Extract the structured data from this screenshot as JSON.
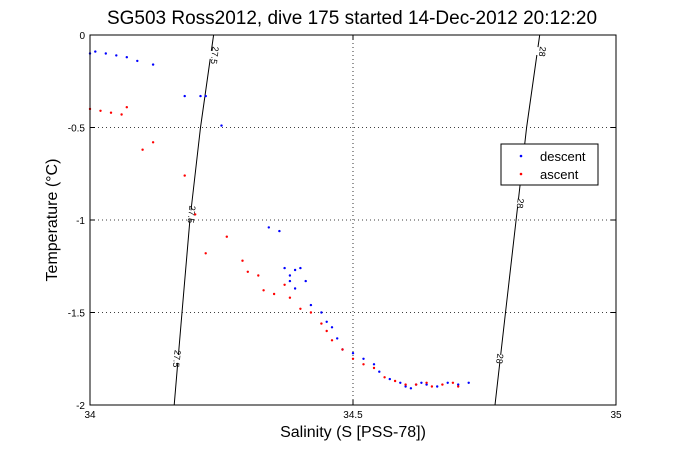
{
  "chart_data": {
    "type": "scatter",
    "title": "SG503 Ross2012, dive 175 started 14-Dec-2012 20:12:20",
    "xlabel": "Salinity (S [PSS-78])",
    "ylabel": "Temperature (°C)",
    "xlim": [
      34,
      35
    ],
    "ylim": [
      -2,
      0
    ],
    "xticks": [
      34,
      34.5,
      35
    ],
    "xtick_labels": [
      "34",
      "34.5",
      "35"
    ],
    "yticks": [
      0,
      -0.5,
      -1,
      -1.5,
      -2
    ],
    "ytick_labels": [
      "0",
      "-0.5",
      "-1",
      "-1.5",
      "-2"
    ],
    "grid": true,
    "grid_style": "dotted",
    "legend_position": "right",
    "isopycnals": [
      {
        "label": "27.5",
        "points": [
          [
            34.16,
            -2.0
          ],
          [
            34.175,
            -1.5
          ],
          [
            34.19,
            -1.0
          ],
          [
            34.21,
            -0.5
          ],
          [
            34.235,
            0.0
          ]
        ],
        "labels_at": [
          [
            34.165,
            -1.75
          ],
          [
            34.193,
            -0.97
          ],
          [
            34.237,
            -0.11
          ]
        ]
      },
      {
        "label": "28",
        "points": [
          [
            34.77,
            -2.0
          ],
          [
            34.79,
            -1.5
          ],
          [
            34.81,
            -1.0
          ],
          [
            34.83,
            -0.5
          ],
          [
            34.855,
            0.0
          ]
        ],
        "labels_at": [
          [
            34.779,
            -1.75
          ],
          [
            34.818,
            -0.91
          ],
          [
            34.86,
            -0.09
          ]
        ]
      }
    ],
    "series": [
      {
        "name": "descent",
        "color": "#0000ff",
        "points": [
          [
            34.0,
            -0.1
          ],
          [
            34.01,
            -0.09
          ],
          [
            34.03,
            -0.1
          ],
          [
            34.05,
            -0.11
          ],
          [
            34.07,
            -0.12
          ],
          [
            34.09,
            -0.14
          ],
          [
            34.12,
            -0.16
          ],
          [
            34.18,
            -0.33
          ],
          [
            34.21,
            -0.33
          ],
          [
            34.22,
            -0.33
          ],
          [
            34.25,
            -0.49
          ],
          [
            34.34,
            -1.04
          ],
          [
            34.36,
            -1.06
          ],
          [
            34.37,
            -1.26
          ],
          [
            34.39,
            -1.27
          ],
          [
            34.38,
            -1.3
          ],
          [
            34.38,
            -1.33
          ],
          [
            34.39,
            -1.37
          ],
          [
            34.4,
            -1.26
          ],
          [
            34.41,
            -1.33
          ],
          [
            34.42,
            -1.46
          ],
          [
            34.44,
            -1.5
          ],
          [
            34.45,
            -1.55
          ],
          [
            34.46,
            -1.58
          ],
          [
            34.47,
            -1.64
          ],
          [
            34.48,
            -1.7
          ],
          [
            34.5,
            -1.72
          ],
          [
            34.52,
            -1.75
          ],
          [
            34.54,
            -1.78
          ],
          [
            34.55,
            -1.82
          ],
          [
            34.57,
            -1.86
          ],
          [
            34.59,
            -1.88
          ],
          [
            34.6,
            -1.9
          ],
          [
            34.61,
            -1.91
          ],
          [
            34.62,
            -1.89
          ],
          [
            34.63,
            -1.88
          ],
          [
            34.64,
            -1.89
          ],
          [
            34.66,
            -1.9
          ],
          [
            34.68,
            -1.88
          ],
          [
            34.7,
            -1.89
          ],
          [
            34.72,
            -1.88
          ]
        ]
      },
      {
        "name": "ascent",
        "color": "#ff0000",
        "points": [
          [
            34.0,
            -0.4
          ],
          [
            34.02,
            -0.41
          ],
          [
            34.04,
            -0.42
          ],
          [
            34.06,
            -0.43
          ],
          [
            34.07,
            -0.39
          ],
          [
            34.1,
            -0.62
          ],
          [
            34.12,
            -0.58
          ],
          [
            34.18,
            -0.76
          ],
          [
            34.2,
            -0.97
          ],
          [
            34.22,
            -1.18
          ],
          [
            34.26,
            -1.09
          ],
          [
            34.29,
            -1.22
          ],
          [
            34.3,
            -1.28
          ],
          [
            34.32,
            -1.3
          ],
          [
            34.33,
            -1.38
          ],
          [
            34.35,
            -1.4
          ],
          [
            34.37,
            -1.35
          ],
          [
            34.38,
            -1.42
          ],
          [
            34.4,
            -1.48
          ],
          [
            34.42,
            -1.5
          ],
          [
            34.44,
            -1.56
          ],
          [
            34.45,
            -1.6
          ],
          [
            34.46,
            -1.65
          ],
          [
            34.48,
            -1.7
          ],
          [
            34.5,
            -1.75
          ],
          [
            34.52,
            -1.78
          ],
          [
            34.54,
            -1.8
          ],
          [
            34.56,
            -1.85
          ],
          [
            34.58,
            -1.87
          ],
          [
            34.6,
            -1.89
          ],
          [
            34.62,
            -1.89
          ],
          [
            34.64,
            -1.88
          ],
          [
            34.65,
            -1.9
          ],
          [
            34.67,
            -1.89
          ],
          [
            34.69,
            -1.88
          ],
          [
            34.7,
            -1.9
          ]
        ]
      }
    ]
  }
}
